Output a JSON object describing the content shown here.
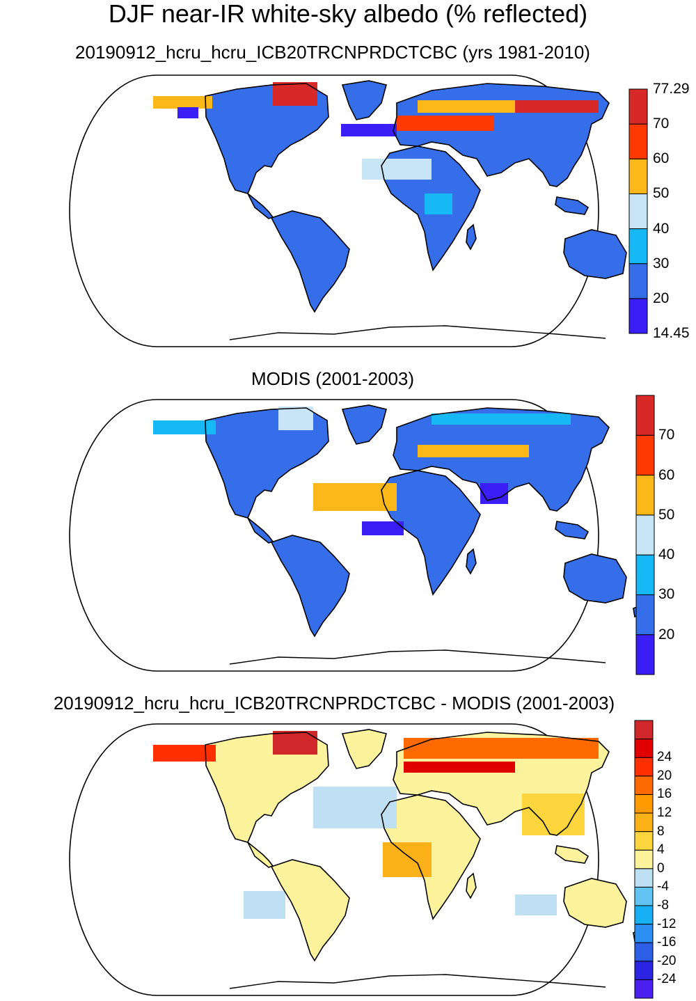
{
  "title": "DJF near-IR white-sky albedo (% reflected)",
  "panels": [
    {
      "subtitle": "20190912_hcru_hcru_ICB20TRCNPRDCTCBC (yrs 1981-2010)",
      "colorbar": {
        "colors": [
          "#3a1ef5",
          "#356ee8",
          "#16b9f5",
          "#c8e5f7",
          "#fbb818",
          "#ff3a00",
          "#d72a28"
        ],
        "labels": [
          "14.45",
          "20",
          "30",
          "40",
          "50",
          "60",
          "70",
          "77.29"
        ]
      }
    },
    {
      "subtitle": "MODIS (2001-2003)",
      "colorbar": {
        "colors": [
          "#3a1ef5",
          "#356ee8",
          "#16b9f5",
          "#c8e5f7",
          "#fbb818",
          "#ff3a00",
          "#d72a28"
        ],
        "labels": [
          "20",
          "30",
          "40",
          "50",
          "60",
          "70"
        ]
      }
    },
    {
      "subtitle": "20190912_hcru_hcru_ICB20TRCNPRDCTCBC - MODIS (2001-2003)",
      "colorbar": {
        "colors": [
          "#4a1ff0",
          "#2b24e3",
          "#2e5ee6",
          "#2b8ef0",
          "#17b0f5",
          "#61c4f3",
          "#bfe0f2",
          "#fdf39c",
          "#fdd53c",
          "#fbb118",
          "#ff9a00",
          "#ff6a00",
          "#ff2f00",
          "#e00000",
          "#d0282a"
        ],
        "labels": [
          "-24",
          "-20",
          "-16",
          "-12",
          "-8",
          "-4",
          "0",
          "4",
          "8",
          "12",
          "16",
          "20",
          "24"
        ]
      }
    }
  ]
}
